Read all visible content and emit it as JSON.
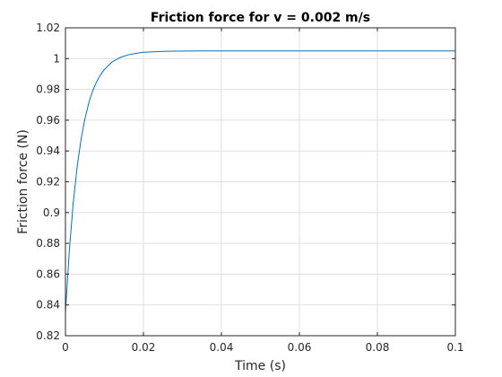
{
  "chart_data": {
    "type": "line",
    "title": "Friction force for v = 0.002 m/s",
    "xlabel": "Time (s)",
    "ylabel": "Friction force (N)",
    "xlim": [
      0,
      0.1
    ],
    "ylim": [
      0.82,
      1.02
    ],
    "grid": true,
    "xticks": [
      0,
      0.02,
      0.04,
      0.06,
      0.08,
      0.1
    ],
    "xtick_labels": [
      "0",
      "0.02",
      "0.04",
      "0.06",
      "0.08",
      "0.1"
    ],
    "yticks": [
      0.82,
      0.84,
      0.86,
      0.88,
      0.9,
      0.92,
      0.94,
      0.96,
      0.98,
      1,
      1.02
    ],
    "ytick_labels": [
      "0.82",
      "0.84",
      "0.86",
      "0.88",
      "0.9",
      "0.92",
      "0.94",
      "0.96",
      "0.98",
      "1",
      "1.02"
    ],
    "series": [
      {
        "color": "#0072BD",
        "x": [
          0,
          0.001,
          0.002,
          0.003,
          0.004,
          0.005,
          0.006,
          0.007,
          0.008,
          0.009,
          0.01,
          0.012,
          0.014,
          0.016,
          0.018,
          0.02,
          0.025,
          0.03,
          0.035,
          0.04,
          0.05,
          0.06,
          0.07,
          0.08,
          0.09,
          0.1
        ],
        "values": [
          0.835,
          0.8755,
          0.9063,
          0.9297,
          0.9475,
          0.961,
          0.9713,
          0.9791,
          0.985,
          0.9895,
          0.993,
          0.9979,
          1.0007,
          1.0024,
          1.0034,
          1.0041,
          1.0047,
          1.0049,
          1.005,
          1.005,
          1.005,
          1.005,
          1.005,
          1.005,
          1.005,
          1.005
        ]
      }
    ]
  }
}
